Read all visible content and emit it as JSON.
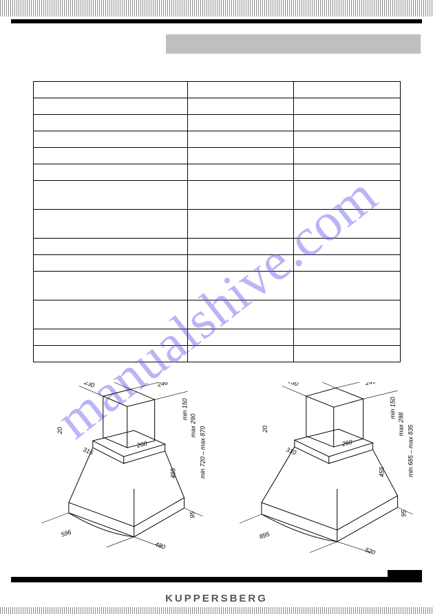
{
  "brand": "KUPPERSBERG",
  "watermark": "manualshive.com",
  "table": {
    "columns": 3,
    "row_heights": [
      "short",
      "short",
      "short",
      "short",
      "short",
      "short",
      "tall",
      "tall",
      "short",
      "short",
      "tall",
      "tall",
      "short",
      "short"
    ]
  },
  "diagrams": {
    "left": {
      "top_w": "246",
      "top_d": "230",
      "side_h": "20",
      "inner_w": "315",
      "inner_d": "260",
      "body_h": "485",
      "shaft_min": "min 150",
      "shaft_max": "max 290",
      "total_min_max": "min 720 – max 870",
      "base_w": "596",
      "base_d": "480",
      "foot_h": "95"
    },
    "right": {
      "top_w": "246",
      "top_d": "230",
      "side_h": "20",
      "inner_w": "310",
      "inner_d": "260",
      "body_h": "455",
      "shaft_min": "min 150",
      "shaft_max": "max 298",
      "total_min_max": "min 685 – max 835",
      "base_w": "895",
      "base_d": "520",
      "foot_h": "95"
    }
  }
}
